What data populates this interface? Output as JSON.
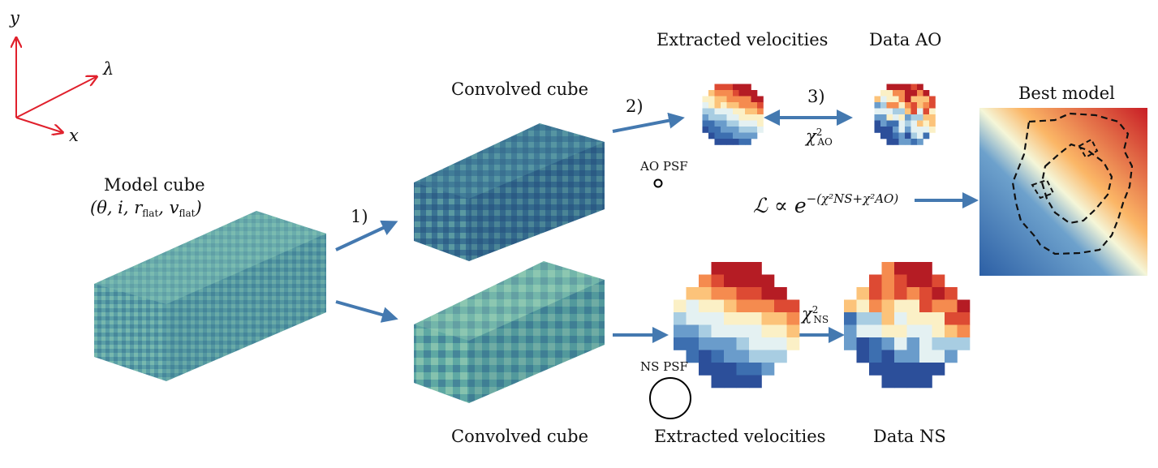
{
  "axes_triad": {
    "y": "y",
    "lambda": "λ",
    "x": "x"
  },
  "model_cube": {
    "title": "Model cube",
    "params": "(θ, i, r",
    "p1": "flat",
    "p2": ", v",
    "p3": "flat",
    "p4": ")"
  },
  "steps": {
    "s1": "1)",
    "s2": "2)",
    "s3": "3)"
  },
  "convolved_top": "Convolved cube",
  "convolved_bottom": "Convolved cube",
  "ao": {
    "extracted": "Extracted velocities",
    "data": "Data AO",
    "psf": "AO PSF",
    "chi": "χ",
    "chi_sup": "2",
    "chi_sub": "AO"
  },
  "ns": {
    "extracted": "Extracted velocities",
    "data": "Data NS",
    "psf": "NS PSF",
    "chi": "χ",
    "chi_sup": "2",
    "chi_sub": "NS"
  },
  "likelihood": {
    "lhs": "ℒ ∝ e",
    "exp": "−(χ²NS+χ²AO)"
  },
  "best_model": "Best model",
  "colors": {
    "arrow": "#4479b0",
    "axis": "#e0202c",
    "cube_dark": "#2f6b86",
    "cube_light": "#8cc7b4"
  }
}
